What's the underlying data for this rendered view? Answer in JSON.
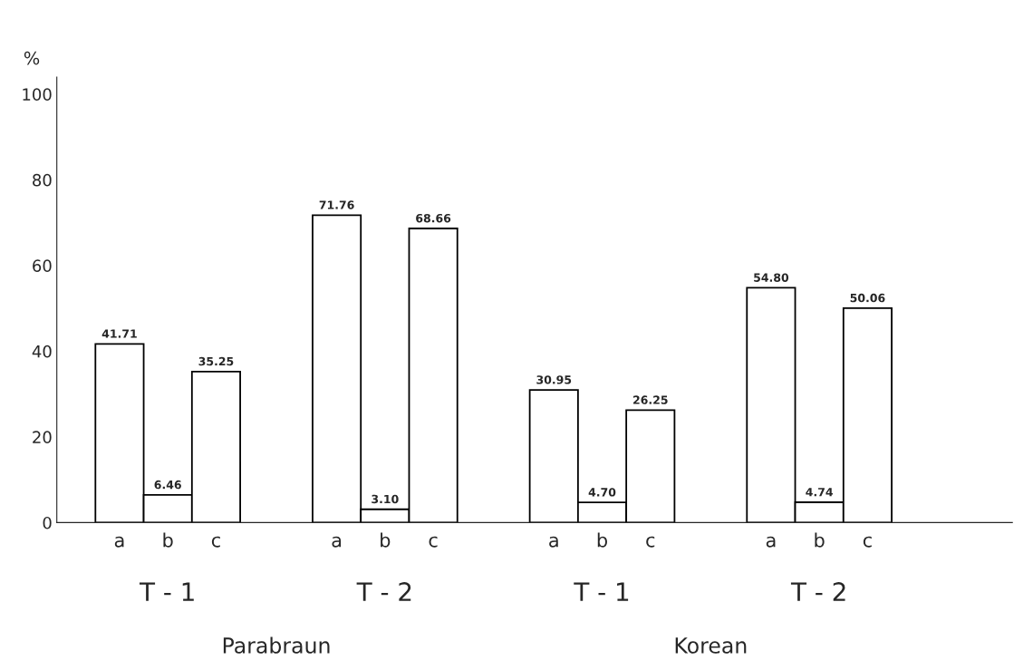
{
  "chart_data": {
    "type": "bar",
    "ylabel": "%",
    "categories": [
      "a",
      "b",
      "c",
      "a",
      "b",
      "c",
      "a",
      "b",
      "c",
      "a",
      "b",
      "c"
    ],
    "values": [
      41.71,
      6.46,
      35.25,
      71.76,
      3.1,
      68.66,
      30.95,
      4.7,
      26.25,
      54.8,
      4.74,
      50.06
    ],
    "value_labels": [
      "41.71",
      "6.46",
      "35.25",
      "71.76",
      "3.10",
      "68.66",
      "30.95",
      "4.70",
      "26.25",
      "54.80",
      "4.74",
      "50.06"
    ],
    "color": "#ffffff",
    "ylim": [
      0,
      104
    ],
    "yticks": [
      0,
      20,
      40,
      60,
      80,
      100
    ],
    "annotations": [
      "T - 1",
      "T - 2",
      "T - 1",
      "T - 2",
      "Parabraun",
      "Korean"
    ],
    "grid": false,
    "legend": false
  }
}
